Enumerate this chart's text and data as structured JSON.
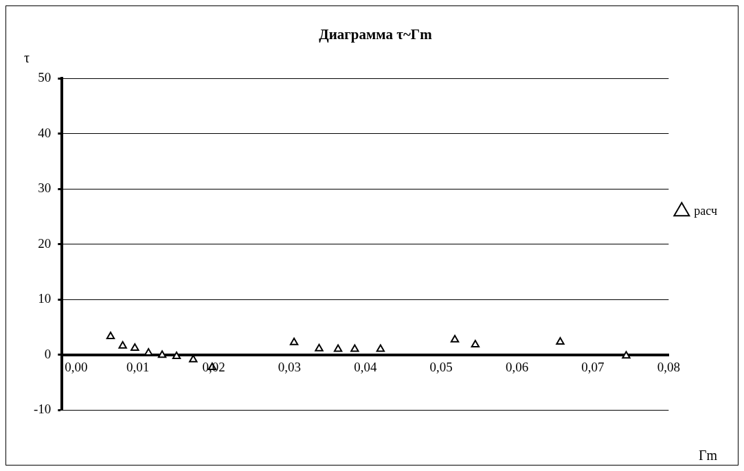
{
  "chart_data": {
    "type": "scatter",
    "title": "Диаграмма τ~Γm",
    "xlabel": "Γm",
    "ylabel": "τ",
    "series": [
      {
        "name": "расч",
        "color": "#000000",
        "marker": "triangle",
        "x": [
          0.0064,
          0.008,
          0.0096,
          0.0114,
          0.0132,
          0.0151,
          0.0173,
          0.0198,
          0.0306,
          0.0339,
          0.0364,
          0.0386,
          0.042,
          0.0518,
          0.0545,
          0.0657,
          0.0744
        ],
        "values": [
          3.3,
          1.6,
          1.2,
          0.3,
          -0.1,
          -0.3,
          -0.9,
          -2.3,
          2.2,
          1.1,
          1.0,
          1.0,
          1.0,
          2.7,
          1.8,
          2.3,
          -0.2
        ]
      }
    ],
    "xlim": [
      0,
      0.08
    ],
    "xticks": [
      {
        "value": 0,
        "label": "0,00"
      },
      {
        "value": 0.01,
        "label": "0,01"
      },
      {
        "value": 0.02,
        "label": "0,02"
      },
      {
        "value": 0.03,
        "label": "0,03"
      },
      {
        "value": 0.04,
        "label": "0,04"
      },
      {
        "value": 0.05,
        "label": "0,05"
      },
      {
        "value": 0.06,
        "label": "0,06"
      },
      {
        "value": 0.07,
        "label": "0,07"
      },
      {
        "value": 0.08,
        "label": "0,08"
      }
    ],
    "ylim": [
      -10,
      50
    ],
    "yticks": [
      -10,
      0,
      10,
      20,
      30,
      40,
      50
    ],
    "grid": "y",
    "legend": "right"
  }
}
